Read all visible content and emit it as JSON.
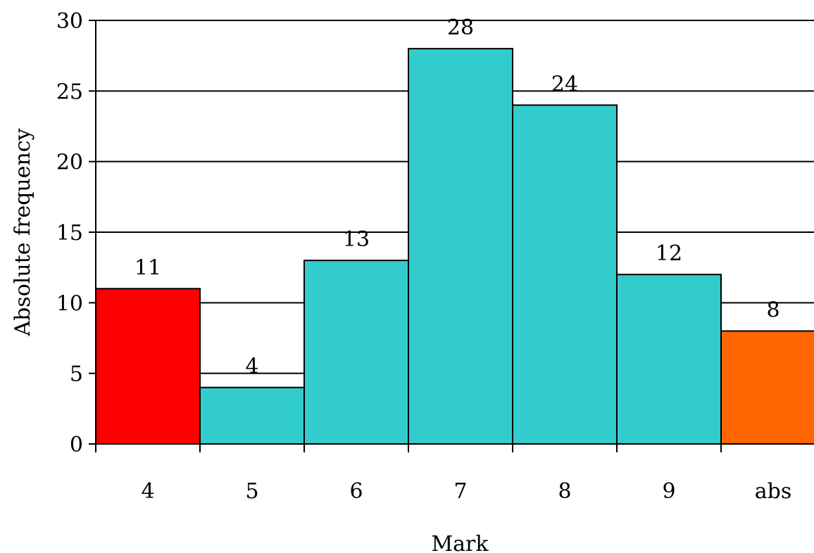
{
  "chart_data": {
    "type": "bar",
    "categories": [
      "4",
      "5",
      "6",
      "7",
      "8",
      "9",
      "abs"
    ],
    "values": [
      11,
      4,
      13,
      28,
      24,
      12,
      8
    ],
    "data_labels": [
      "11",
      "4",
      "13",
      "28",
      "24",
      "12",
      "8"
    ],
    "bar_colors": [
      "#FF0000",
      "#33CCCC",
      "#33CCCC",
      "#33CCCC",
      "#33CCCC",
      "#33CCCC",
      "#FF6600"
    ],
    "title": "",
    "xlabel": "Mark",
    "ylabel": "Absolute frequency",
    "ylim": [
      0,
      30
    ],
    "yticks": [
      0,
      5,
      10,
      15,
      20,
      25,
      30
    ],
    "ytick_labels": [
      "0",
      "5",
      "10",
      "15",
      "20",
      "25",
      "30"
    ],
    "grid": true,
    "legend": "none"
  }
}
